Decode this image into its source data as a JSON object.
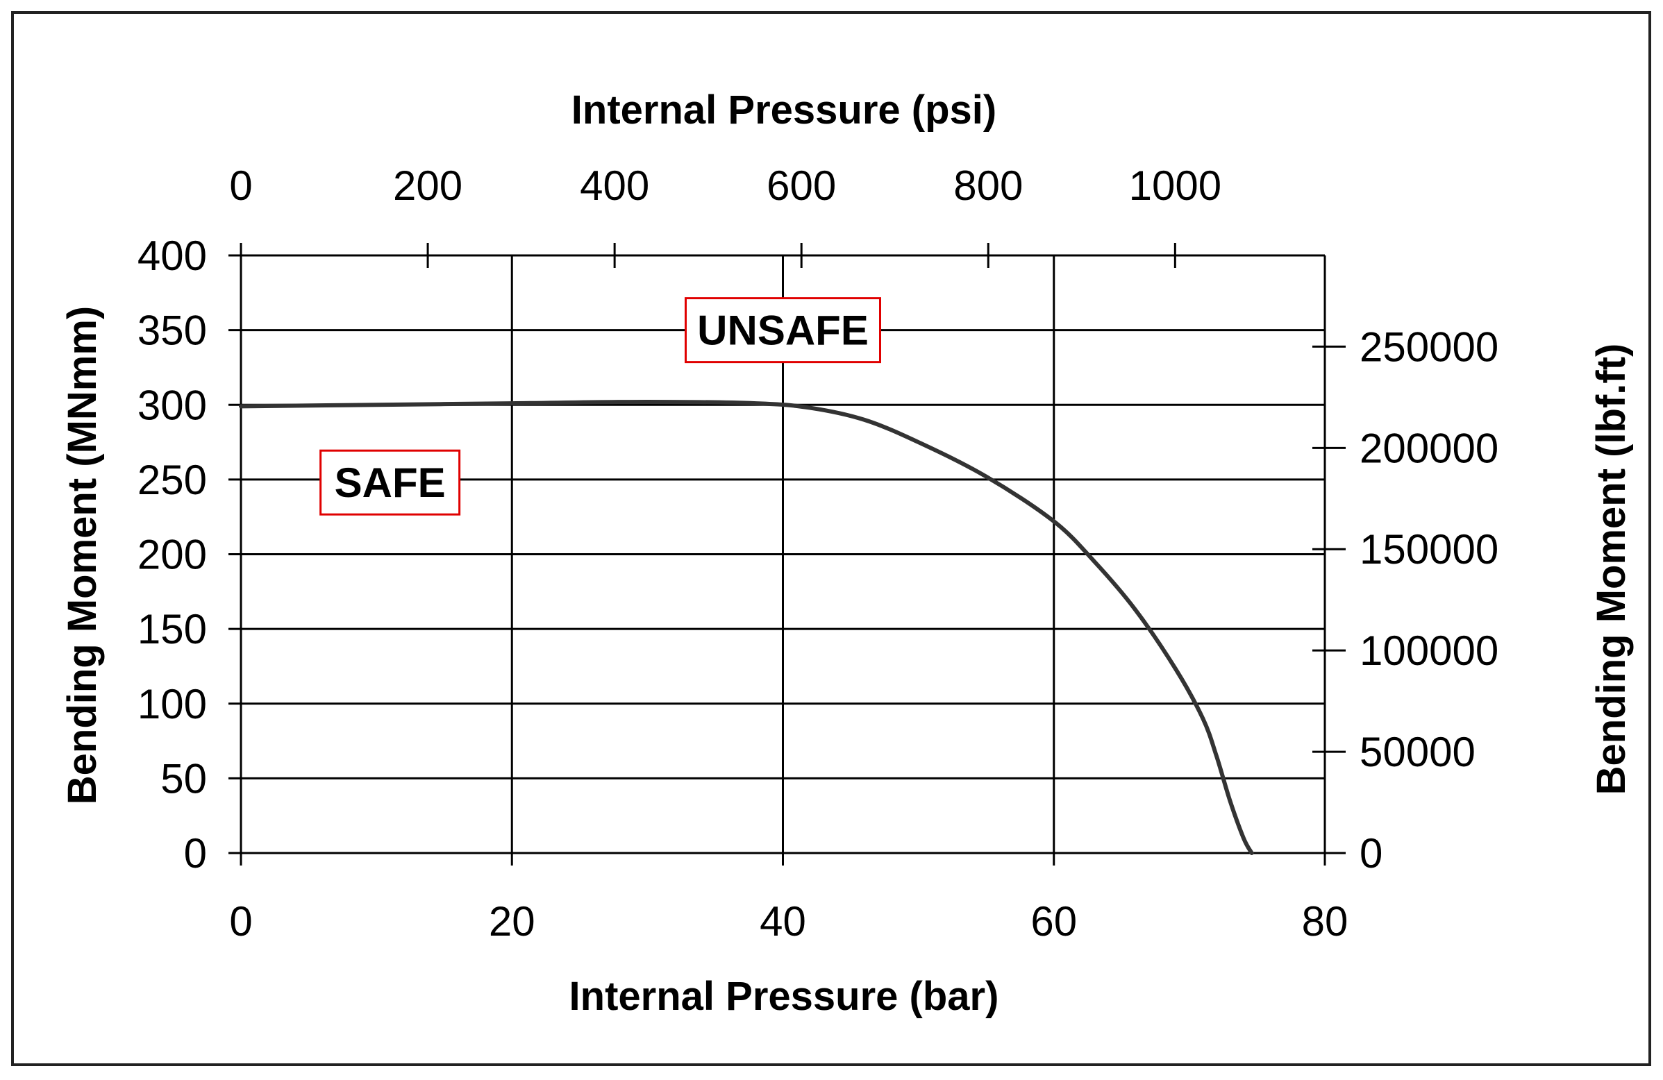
{
  "chart_data": {
    "type": "line",
    "x_axis": {
      "label": "Internal Pressure (bar)",
      "range": [
        0,
        80
      ],
      "ticks": [
        0,
        20,
        40,
        60,
        80
      ]
    },
    "x2_axis": {
      "label": "Internal Pressure (psi)",
      "range": [
        0,
        1160.3
      ],
      "ticks": [
        0,
        200,
        400,
        600,
        800,
        1000
      ]
    },
    "y_axis": {
      "label": "Bending Moment (MNmm)",
      "range": [
        0,
        400
      ],
      "ticks": [
        0,
        50,
        100,
        150,
        200,
        250,
        300,
        350,
        400
      ]
    },
    "y2_axis": {
      "label": "Bending Moment (lbf.ft)",
      "range": [
        0,
        295025
      ],
      "ticks": [
        0,
        50000,
        100000,
        150000,
        200000,
        250000
      ]
    },
    "grid": true,
    "series": [
      {
        "color": "#333333",
        "x": [
          0,
          10,
          20,
          30,
          38,
          42,
          46,
          50,
          55,
          60,
          63,
          66,
          69,
          71,
          72,
          73,
          74,
          74.6
        ],
        "y": [
          299,
          300,
          301,
          302,
          301,
          298,
          290,
          275,
          252,
          222,
          195,
          163,
          123,
          90,
          65,
          35,
          10,
          0
        ]
      }
    ],
    "annotations": [
      {
        "text": "UNSAFE",
        "x": 40,
        "y": 350,
        "border": "#e00000"
      },
      {
        "text": "SAFE",
        "x": 11,
        "y": 248,
        "border": "#e00000"
      }
    ]
  }
}
